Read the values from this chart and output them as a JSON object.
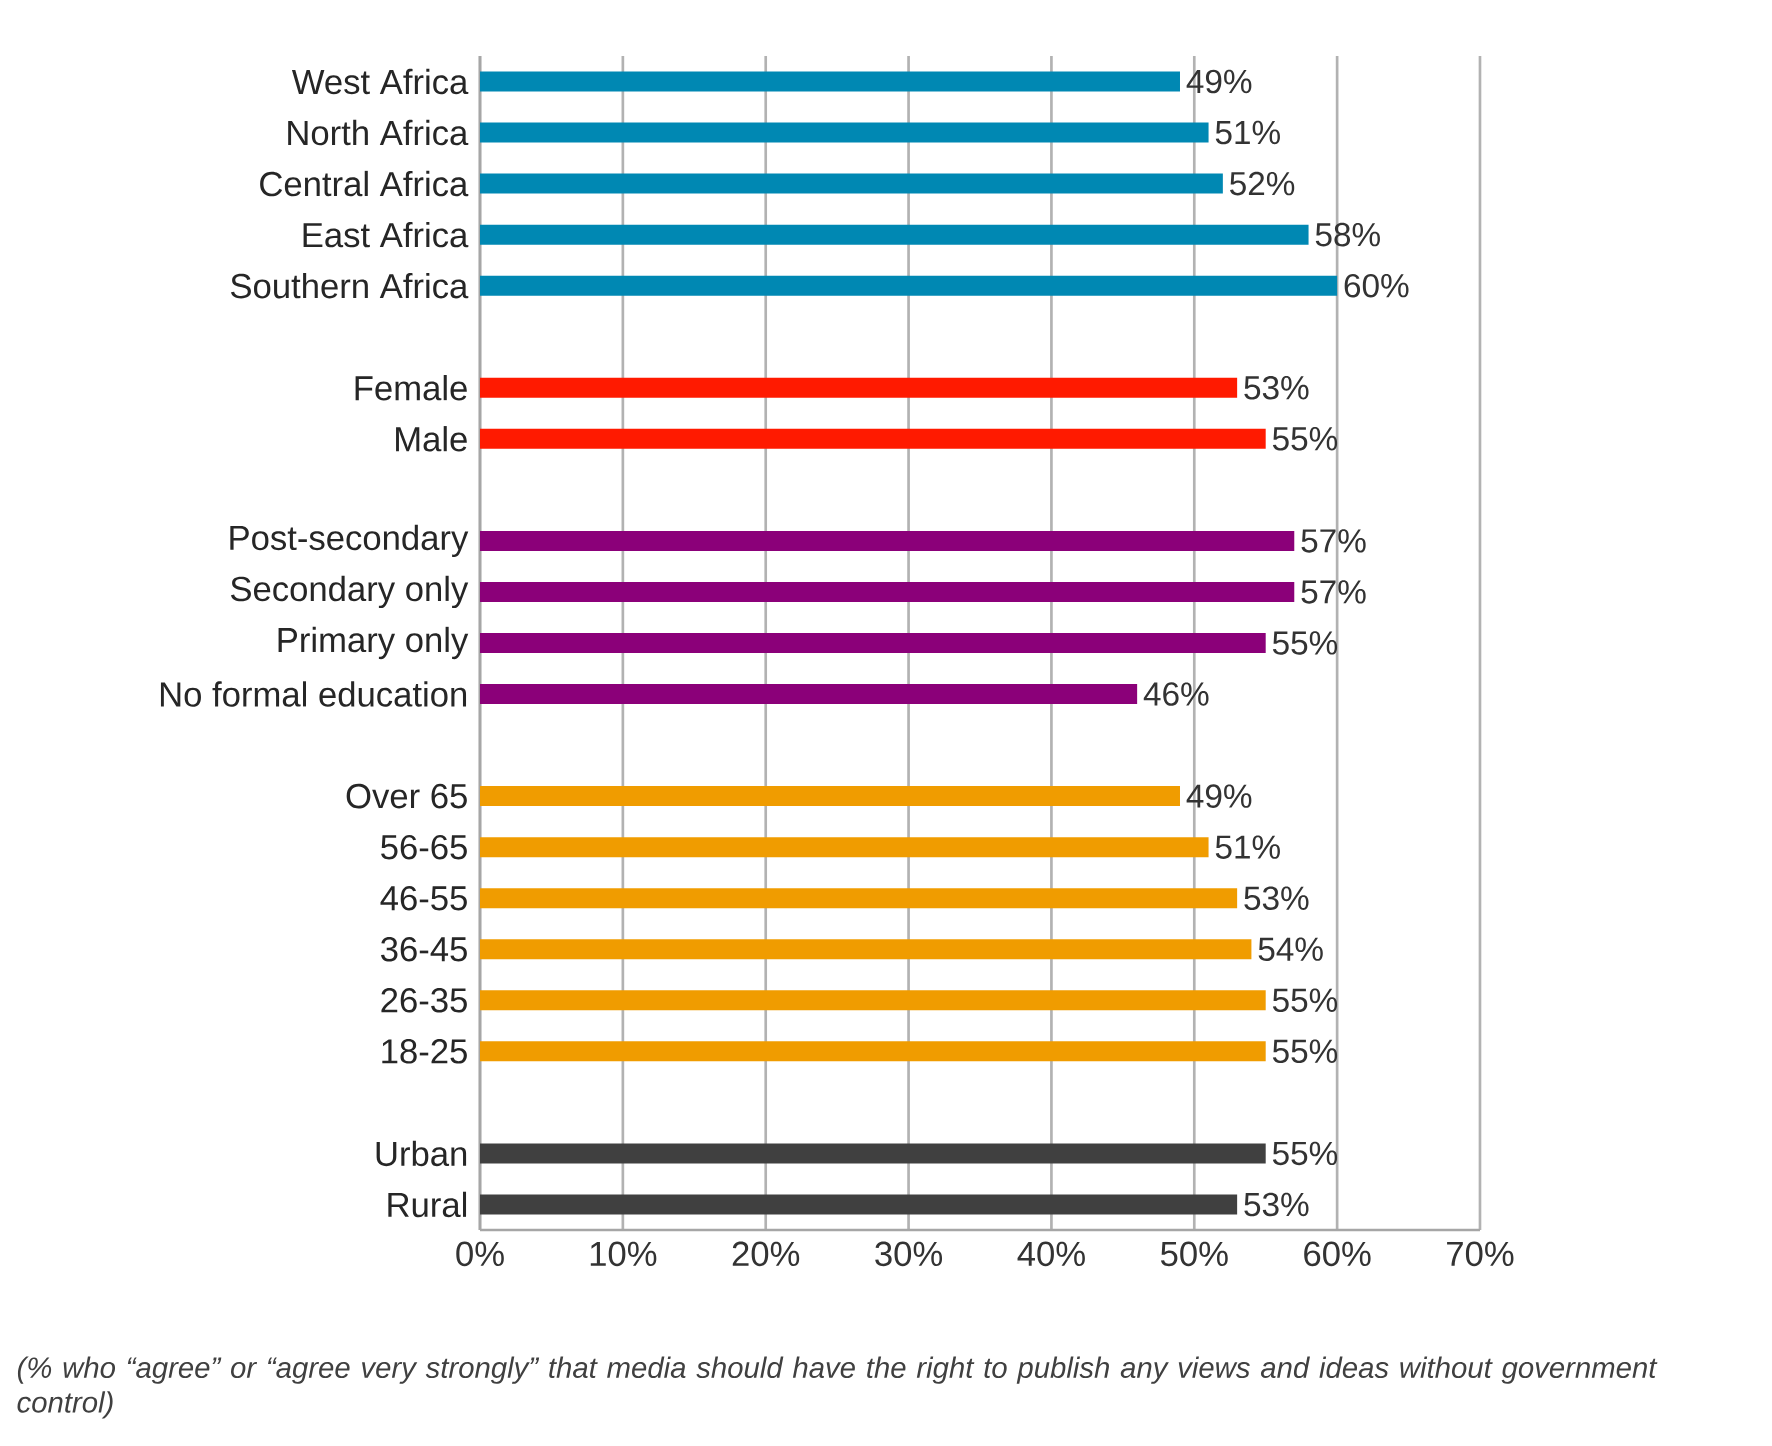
{
  "chart_data": {
    "type": "bar",
    "orientation": "horizontal",
    "categories": [
      "West Africa",
      "North Africa",
      "Central Africa",
      "East Africa",
      "Southern Africa",
      null,
      "Female",
      "Male",
      null,
      "Post-secondary",
      "Secondary only",
      "Primary only",
      "No formal education",
      null,
      "Over 65",
      "56-65",
      "46-55",
      "36-45",
      "26-35",
      "18-25",
      null,
      "Urban",
      "Rural"
    ],
    "values": [
      49,
      51,
      52,
      58,
      60,
      null,
      53,
      55,
      null,
      57,
      57,
      55,
      46,
      null,
      49,
      51,
      53,
      54,
      55,
      55,
      null,
      55,
      53
    ],
    "value_labels": [
      "49%",
      "51%",
      "52%",
      "58%",
      "60%",
      null,
      "53%",
      "55%",
      null,
      "57%",
      "57%",
      "55%",
      "46%",
      null,
      "49%",
      "51%",
      "53%",
      "54%",
      "55%",
      "55%",
      null,
      "55%",
      "53%"
    ],
    "colors": [
      "#0088b3",
      "#0088b3",
      "#0088b3",
      "#0088b3",
      "#0088b3",
      null,
      "#ff1a00",
      "#ff1a00",
      null,
      "#8b0079",
      "#8b0079",
      "#8b0079",
      "#8b0079",
      null,
      "#f09c00",
      "#f09c00",
      "#f09c00",
      "#f09c00",
      "#f09c00",
      "#f09c00",
      null,
      "#404040",
      "#404040"
    ],
    "xlim": [
      0,
      70
    ],
    "xticks": [
      {
        "value": 0,
        "label": "0%"
      },
      {
        "value": 10,
        "label": "10%"
      },
      {
        "value": 20,
        "label": "20%"
      },
      {
        "value": 30,
        "label": "30%"
      },
      {
        "value": 40,
        "label": "40%"
      },
      {
        "value": 50,
        "label": "50%"
      },
      {
        "value": 60,
        "label": "60%"
      },
      {
        "value": 70,
        "label": "70%"
      }
    ],
    "grid": "x",
    "annotations": [
      "(% who “agree” or “agree very strongly” that media should have the right to publish any views and ideas without government control)"
    ]
  }
}
